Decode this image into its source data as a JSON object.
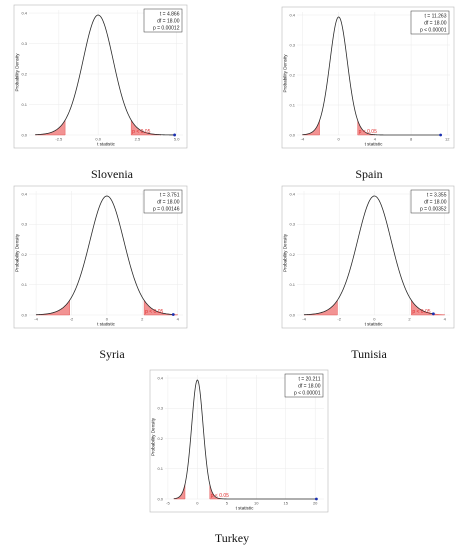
{
  "chart_data": [
    {
      "type": "area",
      "country": "Slovenia",
      "xlabel": "t statistic",
      "ylabel": "Probability Density",
      "xlim": [
        -4.4,
        5.4
      ],
      "ylim": [
        0,
        0.41
      ],
      "xticks": [
        -2.5,
        0.0,
        2.5,
        5.0
      ],
      "xtick_labels": [
        "-2.5",
        "0.0",
        "2.5",
        "5.0"
      ],
      "yticks": [
        0.0,
        0.1,
        0.2,
        0.3,
        0.4
      ],
      "ytick_labels": [
        "0.0",
        "0.1",
        "0.2",
        "0.3",
        "0.4"
      ],
      "t": 4.866,
      "df": 18.0,
      "critical_t": 2.101,
      "stats": [
        "t = 4.866",
        "df = 18.00",
        "p = 0.00012"
      ],
      "p_label": "p < 0.05",
      "grid": true,
      "stats_box": "top-right"
    },
    {
      "type": "area",
      "country": "Spain",
      "xlabel": "t statistic",
      "ylabel": "Probability Density",
      "xlim": [
        -4.6,
        12.3
      ],
      "ylim": [
        0,
        0.41
      ],
      "xticks": [
        -4,
        0,
        4,
        8,
        12
      ],
      "xtick_labels": [
        "-4",
        "0",
        "4",
        "8",
        "12"
      ],
      "yticks": [
        0.0,
        0.1,
        0.2,
        0.3,
        0.4
      ],
      "ytick_labels": [
        "0.0",
        "0.1",
        "0.2",
        "0.3",
        "0.4"
      ],
      "t": 11.263,
      "df": 18.0,
      "critical_t": 2.101,
      "stats": [
        "t = 11.263",
        "df = 18.00",
        "p < 0.00001"
      ],
      "p_label": "p < 0.05",
      "grid": true,
      "stats_box": "top-right"
    },
    {
      "type": "area",
      "country": "Syria",
      "xlabel": "t statistic",
      "ylabel": "Probability Density",
      "xlim": [
        -4.4,
        4.3
      ],
      "ylim": [
        0,
        0.41
      ],
      "xticks": [
        -4,
        -2,
        0,
        2,
        4
      ],
      "xtick_labels": [
        "-4",
        "-2",
        "0",
        "2",
        "4"
      ],
      "yticks": [
        0.0,
        0.1,
        0.2,
        0.3,
        0.4
      ],
      "ytick_labels": [
        "0.0",
        "0.1",
        "0.2",
        "0.3",
        "0.4"
      ],
      "t": 3.751,
      "df": 18.0,
      "critical_t": 2.101,
      "stats": [
        "t = 3.751",
        "df = 18.00",
        "p = 0.00146"
      ],
      "p_label": "p < 0.05",
      "grid": true,
      "stats_box": "top-right"
    },
    {
      "type": "area",
      "country": "Tunisia",
      "xlabel": "t statistic",
      "ylabel": "Probability Density",
      "xlim": [
        -4.4,
        4.3
      ],
      "ylim": [
        0,
        0.41
      ],
      "xticks": [
        -4,
        -2,
        0,
        2,
        4
      ],
      "xtick_labels": [
        "-4",
        "-2",
        "0",
        "2",
        "4"
      ],
      "yticks": [
        0.0,
        0.1,
        0.2,
        0.3,
        0.4
      ],
      "ytick_labels": [
        "0.0",
        "0.1",
        "0.2",
        "0.3",
        "0.4"
      ],
      "t": 3.355,
      "df": 18.0,
      "critical_t": 2.101,
      "stats": [
        "t = 3.355",
        "df = 18.00",
        "p = 0.00352"
      ],
      "p_label": "p < 0.05",
      "grid": true,
      "stats_box": "top-right"
    },
    {
      "type": "area",
      "country": "Turkey",
      "xlabel": "t statistic",
      "ylabel": "Probability Density",
      "xlim": [
        -5.5,
        21.5
      ],
      "ylim": [
        0,
        0.41
      ],
      "xticks": [
        -5,
        0,
        5,
        10,
        15,
        20
      ],
      "xtick_labels": [
        "-5",
        "0",
        "5",
        "10",
        "15",
        "20"
      ],
      "yticks": [
        0.0,
        0.1,
        0.2,
        0.3,
        0.4
      ],
      "ytick_labels": [
        "0.0",
        "0.1",
        "0.2",
        "0.3",
        "0.4"
      ],
      "t": 20.211,
      "df": 18.0,
      "critical_t": 2.101,
      "stats": [
        "t = 20.211",
        "df = 18.00",
        "p < 0.00001"
      ],
      "p_label": "p < 0.05",
      "grid": true,
      "stats_box": "top-right"
    }
  ],
  "colors": {
    "curve": "#2b2b2b",
    "tail_fill": "#f08080",
    "tail_stroke": "#e04545",
    "p_label": "#e03030",
    "observed": "#1a2fb0",
    "grid": "#ebebeb",
    "frame": "#b8b8b8"
  }
}
